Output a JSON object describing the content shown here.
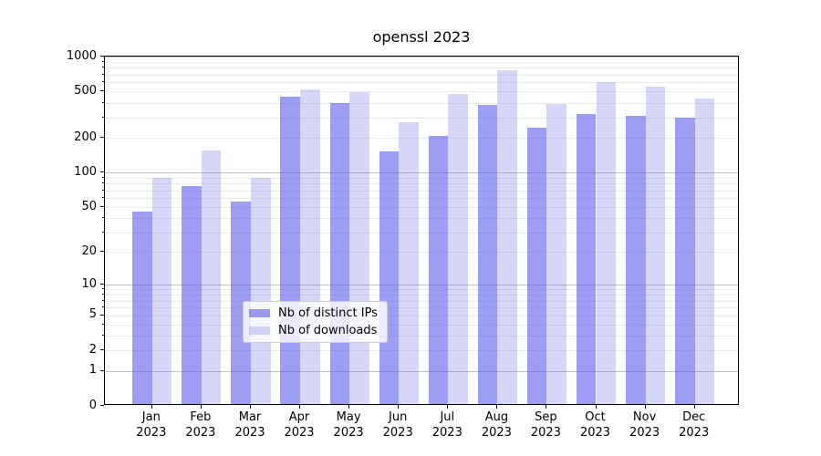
{
  "title": "openssl 2023",
  "legend": {
    "items": [
      {
        "label": "Nb of distinct IPs",
        "color": "rgba(80,80,230,0.56)"
      },
      {
        "label": "Nb of downloads",
        "color": "rgba(80,80,230,0.23)"
      }
    ]
  },
  "chart_data": {
    "type": "bar",
    "title": "openssl 2023",
    "months": [
      "Jan",
      "Feb",
      "Mar",
      "Apr",
      "May",
      "Jun",
      "Jul",
      "Aug",
      "Sep",
      "Oct",
      "Nov",
      "Dec"
    ],
    "year": "2023",
    "series": [
      {
        "name": "Nb of distinct IPs",
        "color": "rgba(80,80,230,0.56)",
        "values": [
          44,
          73,
          54,
          438,
          385,
          146,
          202,
          372,
          237,
          311,
          300,
          285
        ]
      },
      {
        "name": "Nb of downloads",
        "color": "rgba(80,80,230,0.23)",
        "values": [
          86,
          151,
          86,
          505,
          480,
          265,
          462,
          740,
          378,
          582,
          531,
          420
        ]
      }
    ],
    "yscale": "log1p",
    "ylim": [
      0,
      1000
    ],
    "yticks": [
      0,
      1,
      2,
      5,
      10,
      20,
      50,
      100,
      200,
      500,
      1000
    ],
    "grid": "major at powers of ten, minor at 2-9 mantissas",
    "legend_position": "lower center"
  }
}
